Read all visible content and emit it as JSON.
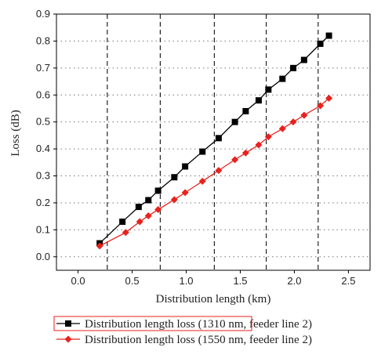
{
  "chart_data": {
    "type": "line",
    "title": "",
    "xlabel": "Distribution length (km)",
    "ylabel": "Loss (dB)",
    "xlim": [
      -0.2,
      2.7
    ],
    "ylim": [
      -0.05,
      0.9
    ],
    "x_ticks": [
      "0.0",
      "0.5",
      "1.0",
      "1.5",
      "2.0",
      "2.5"
    ],
    "y_ticks": [
      "0.0",
      "0.1",
      "0.2",
      "0.3",
      "0.4",
      "0.5",
      "0.6",
      "0.7",
      "0.8",
      "0.9"
    ],
    "grid": "dotted horizontal",
    "vertical_markers_x": [
      0.27,
      0.76,
      1.26,
      1.74,
      2.22
    ],
    "legend_position": "below",
    "series": [
      {
        "name": "Distribution length loss (1310 nm, feeder line 2)",
        "color": "#000000",
        "line_color": "#000000",
        "marker": "square",
        "x": [
          0.2,
          0.41,
          0.56,
          0.65,
          0.74,
          0.89,
          0.99,
          1.15,
          1.3,
          1.45,
          1.55,
          1.67,
          1.76,
          1.89,
          1.99,
          2.09,
          2.24,
          2.32
        ],
        "y": [
          0.05,
          0.13,
          0.185,
          0.21,
          0.245,
          0.295,
          0.335,
          0.39,
          0.44,
          0.5,
          0.54,
          0.58,
          0.62,
          0.66,
          0.7,
          0.73,
          0.79,
          0.82
        ]
      },
      {
        "name": "Distribution length loss (1550 nm, feeder line 2)",
        "color": "#e8221d",
        "line_color": "#e8221d",
        "marker": "diamond",
        "x": [
          0.2,
          0.44,
          0.57,
          0.65,
          0.74,
          0.89,
          0.99,
          1.15,
          1.3,
          1.45,
          1.55,
          1.67,
          1.76,
          1.89,
          1.99,
          2.09,
          2.24,
          2.32
        ],
        "y": [
          0.04,
          0.09,
          0.13,
          0.152,
          0.175,
          0.212,
          0.238,
          0.28,
          0.32,
          0.36,
          0.385,
          0.415,
          0.445,
          0.475,
          0.5,
          0.525,
          0.56,
          0.588
        ]
      }
    ]
  }
}
